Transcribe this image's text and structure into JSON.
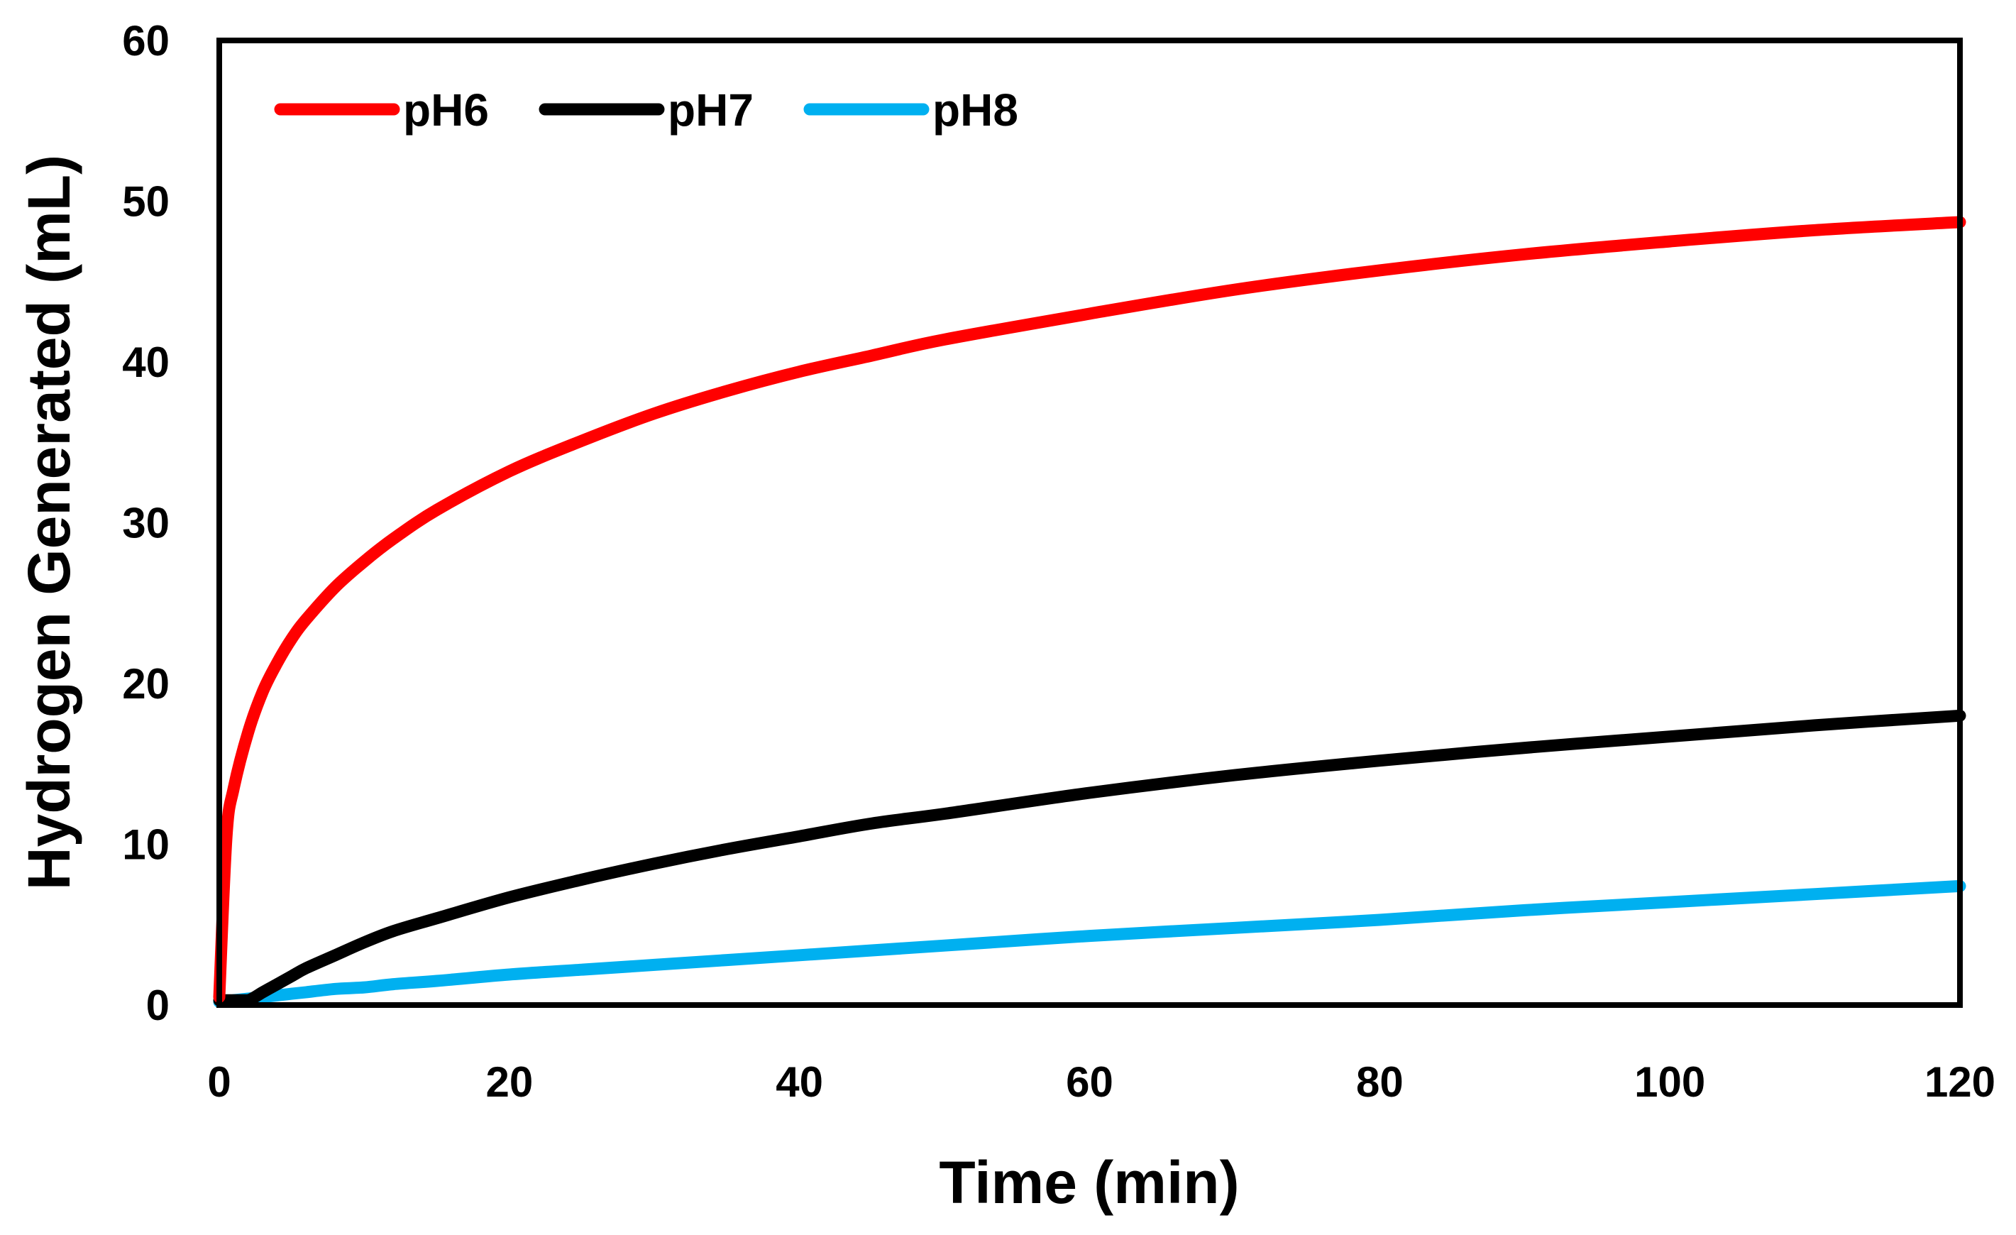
{
  "chart_data": {
    "type": "line",
    "title": "",
    "xlabel": "Time (min)",
    "ylabel": "Hydrogen Generated (mL)",
    "xlim": [
      0,
      120
    ],
    "ylim": [
      0,
      60
    ],
    "xticks": [
      0,
      20,
      40,
      60,
      80,
      100,
      120
    ],
    "yticks": [
      0,
      10,
      20,
      30,
      40,
      50,
      60
    ],
    "xtick_labels": [
      "0",
      "20",
      "40",
      "60",
      "80",
      "100",
      "120"
    ],
    "ytick_labels": [
      "0",
      "10",
      "20",
      "30",
      "40",
      "50",
      "60"
    ],
    "grid": false,
    "legend_position": "top-left",
    "x": [
      0,
      0.5,
      1,
      2,
      3,
      4,
      5,
      6,
      8,
      10,
      12,
      15,
      20,
      25,
      30,
      35,
      40,
      45,
      50,
      60,
      70,
      80,
      90,
      100,
      110,
      120
    ],
    "series": [
      {
        "name": "pH6",
        "color": "#ff0000",
        "values": [
          0.5,
          10.5,
          13.5,
          17.0,
          19.5,
          21.3,
          22.8,
          24.0,
          26.0,
          27.6,
          29.0,
          30.8,
          33.2,
          35.1,
          36.8,
          38.2,
          39.4,
          40.4,
          41.4,
          43.0,
          44.5,
          45.7,
          46.7,
          47.5,
          48.2,
          48.7
        ]
      },
      {
        "name": "pH7",
        "color": "#000000",
        "values": [
          0.3,
          0.3,
          0.3,
          0.3,
          0.8,
          1.3,
          1.8,
          2.3,
          3.1,
          3.9,
          4.6,
          5.4,
          6.7,
          7.8,
          8.8,
          9.7,
          10.5,
          11.3,
          11.9,
          13.2,
          14.3,
          15.2,
          16.0,
          16.7,
          17.4,
          18.0
        ]
      },
      {
        "name": "pH8",
        "color": "#00b0f0",
        "values": [
          0.2,
          0.2,
          0.3,
          0.4,
          0.5,
          0.6,
          0.7,
          0.8,
          1.0,
          1.1,
          1.3,
          1.5,
          1.9,
          2.2,
          2.5,
          2.8,
          3.1,
          3.4,
          3.7,
          4.3,
          4.8,
          5.3,
          5.9,
          6.4,
          6.9,
          7.4
        ]
      }
    ]
  }
}
